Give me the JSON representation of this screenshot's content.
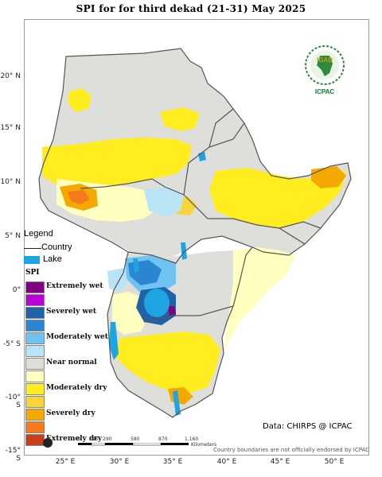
{
  "title": "SPI  for   for   third dekad (21-31)  May 2025",
  "latitude_labels": [
    "20° N",
    "15° N",
    "10° N",
    "5° N",
    "0°",
    "-5° S",
    "-10° S",
    "-15° S"
  ],
  "longitude_labels": [
    "25° E",
    "30° E",
    "35° E",
    "40° E",
    "45° E",
    "50° E"
  ],
  "legend": {
    "title": "Legend",
    "country_label": "Country",
    "lake_label": "Lake",
    "lake_color": "#1ea4e0",
    "spi_title": "SPI",
    "classes": [
      {
        "label": "Extremely wet",
        "color": "#800080"
      },
      {
        "label": "",
        "color": "#b900d6"
      },
      {
        "label": "Severely wet",
        "color": "#1f62a8"
      },
      {
        "label": "",
        "color": "#2a86d0"
      },
      {
        "label": "Moderately wet",
        "color": "#6ec3f0"
      },
      {
        "label": "",
        "color": "#b9e4f6"
      },
      {
        "label": "Near normal",
        "color": "#deded6"
      },
      {
        "label": "",
        "color": "#ffffc0"
      },
      {
        "label": "Moderately dry",
        "color": "#ffed20"
      },
      {
        "label": "",
        "color": "#f7d43a"
      },
      {
        "label": "Severely dry",
        "color": "#f5a800"
      },
      {
        "label": "",
        "color": "#f47a1e"
      },
      {
        "label": "Extremely dry",
        "color": "#c8401a"
      }
    ]
  },
  "logo": {
    "text": "ICPAC",
    "inner_text": "IGAD"
  },
  "data_credit": "Data: CHIRPS @ ICPAC",
  "disclaimer": "Country boundaries are not officially endorsed by ICPAC",
  "scale_bar": {
    "labels": [
      "0",
      "145",
      "290",
      "580",
      "870",
      "1,160"
    ],
    "unit": "Kilometers"
  }
}
